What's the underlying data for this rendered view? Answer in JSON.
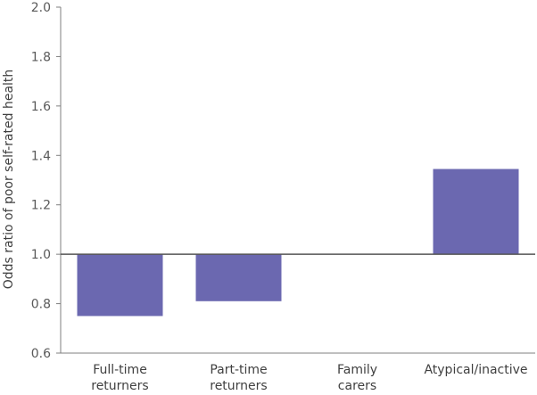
{
  "chart_data": {
    "type": "bar",
    "title": "",
    "xlabel": "",
    "ylabel": "Odds ratio of poor self-rated health",
    "ylim": [
      0.6,
      2.0
    ],
    "yticks": [
      "0.6",
      "0.8",
      "1.0",
      "1.2",
      "1.4",
      "1.6",
      "1.8",
      "2.0"
    ],
    "baseline": 1.0,
    "categories": [
      [
        "Full-time",
        "returners"
      ],
      [
        "Part-time",
        "returners"
      ],
      [
        "Family",
        "carers"
      ],
      [
        "Atypical/inactive"
      ]
    ],
    "values": [
      0.75,
      0.81,
      1.0,
      1.345
    ],
    "grid": false,
    "legend": "none",
    "colors": {
      "bar": "#6b68b0",
      "axis": "#7f7f7f",
      "baseline": "#555555"
    }
  }
}
